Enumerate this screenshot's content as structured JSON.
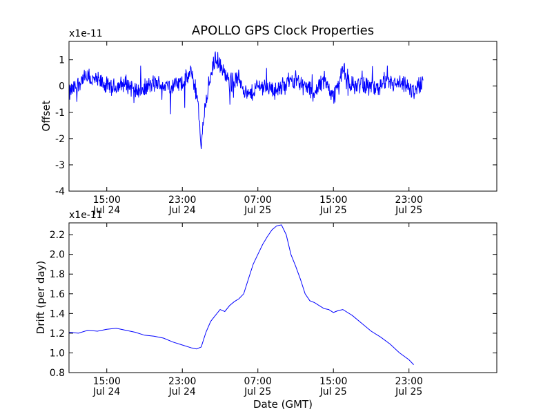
{
  "title": "APOLLO GPS Clock Properties",
  "chart_data": [
    {
      "type": "line",
      "ylabel": "Offset",
      "xlabel": "",
      "yscale_label": "x1e-11",
      "ylim": [
        -4,
        1.7
      ],
      "xlim": [
        11.0,
        56.3
      ],
      "yticks": [
        -4,
        -3,
        -2,
        -1,
        0,
        1
      ],
      "ytick_labels": [
        "-4",
        "-3",
        "-2",
        "-1",
        "0",
        "1"
      ],
      "xticks": [
        {
          "x": 15,
          "time": "15:00",
          "date": "Jul 24"
        },
        {
          "x": 23,
          "time": "23:00",
          "date": "Jul 24"
        },
        {
          "x": 31,
          "time": "07:00",
          "date": "Jul 25"
        },
        {
          "x": 39,
          "time": "15:00",
          "date": "Jul 25"
        },
        {
          "x": 47,
          "time": "23:00",
          "date": "Jul 25"
        }
      ],
      "color": "#0000ff",
      "noise_amplitude": 0.3,
      "series": [
        {
          "name": "offset",
          "x": [
            11.0,
            12.5,
            14.0,
            15.5,
            17.0,
            18.5,
            20.0,
            21.5,
            23.0,
            24.0,
            24.6,
            25.0,
            25.4,
            25.8,
            26.5,
            27.2,
            28.0,
            29.0,
            30.0,
            31.0,
            32.0,
            33.0,
            34.0,
            35.0,
            36.0,
            37.0,
            38.0,
            39.0,
            40.0,
            41.0,
            42.0,
            43.5,
            45.0,
            46.5,
            47.5,
            48.5
          ],
          "y": [
            -0.3,
            0.3,
            0.2,
            -0.1,
            0.1,
            -0.2,
            0.1,
            0.0,
            0.1,
            0.5,
            -0.5,
            -2.3,
            -0.7,
            0.0,
            1.1,
            0.6,
            0.1,
            0.3,
            -0.4,
            0.0,
            0.0,
            -0.2,
            0.1,
            0.3,
            0.0,
            -0.3,
            0.3,
            -0.4,
            0.6,
            0.0,
            0.1,
            -0.1,
            0.1,
            0.0,
            -0.2,
            0.2
          ]
        }
      ]
    },
    {
      "type": "line",
      "ylabel": "Drift (per day)",
      "xlabel": "Date (GMT)",
      "yscale_label": "x1e-11",
      "ylim": [
        0.8,
        2.32
      ],
      "xlim": [
        11.0,
        56.3
      ],
      "yticks": [
        0.8,
        1.0,
        1.2,
        1.4,
        1.6,
        1.8,
        2.0,
        2.2
      ],
      "ytick_labels": [
        "0.8",
        "1.0",
        "1.2",
        "1.4",
        "1.6",
        "1.8",
        "2.0",
        "2.2"
      ],
      "xticks": [
        {
          "x": 15,
          "time": "15:00",
          "date": "Jul 24"
        },
        {
          "x": 23,
          "time": "23:00",
          "date": "Jul 24"
        },
        {
          "x": 31,
          "time": "07:00",
          "date": "Jul 25"
        },
        {
          "x": 39,
          "time": "15:00",
          "date": "Jul 25"
        },
        {
          "x": 47,
          "time": "23:00",
          "date": "Jul 25"
        }
      ],
      "color": "#0000ff",
      "series": [
        {
          "name": "drift",
          "x": [
            11.0,
            12.0,
            13.0,
            14.0,
            15.0,
            16.0,
            17.0,
            18.0,
            19.0,
            20.0,
            21.0,
            22.0,
            23.0,
            24.0,
            24.5,
            25.0,
            25.5,
            26.0,
            26.5,
            27.0,
            27.5,
            28.0,
            28.5,
            29.0,
            29.5,
            30.0,
            30.5,
            31.0,
            31.5,
            32.0,
            32.5,
            33.0,
            33.5,
            34.0,
            34.5,
            35.0,
            35.5,
            36.0,
            36.5,
            37.0,
            37.5,
            38.0,
            38.5,
            39.0,
            39.5,
            40.0,
            41.0,
            42.0,
            43.0,
            44.0,
            45.0,
            46.0,
            47.0,
            47.5
          ],
          "y": [
            1.21,
            1.2,
            1.23,
            1.22,
            1.24,
            1.25,
            1.23,
            1.21,
            1.18,
            1.17,
            1.15,
            1.11,
            1.08,
            1.05,
            1.04,
            1.06,
            1.21,
            1.32,
            1.38,
            1.44,
            1.42,
            1.48,
            1.52,
            1.55,
            1.6,
            1.75,
            1.9,
            2.0,
            2.1,
            2.18,
            2.25,
            2.29,
            2.3,
            2.2,
            2.0,
            1.88,
            1.75,
            1.6,
            1.53,
            1.51,
            1.48,
            1.45,
            1.44,
            1.41,
            1.43,
            1.44,
            1.38,
            1.3,
            1.22,
            1.16,
            1.09,
            1.0,
            0.93,
            0.88
          ]
        }
      ]
    }
  ]
}
